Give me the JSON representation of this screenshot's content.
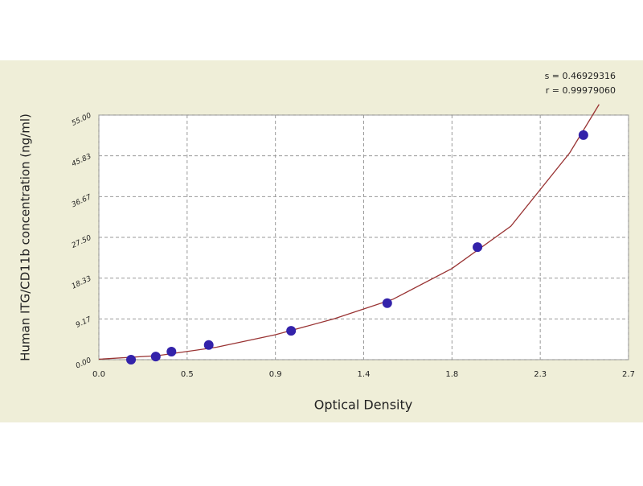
{
  "chart_data": {
    "type": "scatter",
    "annotations": [
      "s = 0.46929316",
      "r = 0.99979060"
    ],
    "xlabel": "Optical Density",
    "ylabel": "Human ITG/CD11b concentration (ng/ml)",
    "xlim": [
      0,
      2.7
    ],
    "ylim": [
      0,
      55
    ],
    "xticks": [
      {
        "value": 0,
        "label": "0.0"
      },
      {
        "value": 0.45,
        "label": "0.5"
      },
      0.9,
      {
        "value": 1.35,
        "label": "1.4"
      },
      1.8,
      {
        "value": 2.25,
        "label": "2.3"
      },
      2.7
    ],
    "yticks": [
      {
        "value": 0,
        "label": "0.00"
      },
      9.17,
      18.33,
      {
        "value": 27.5,
        "label": "27.50"
      },
      36.67,
      45.83,
      {
        "value": 55,
        "label": "55.00"
      }
    ],
    "grid": true,
    "points": {
      "color": "#3322aa",
      "x": [
        0.164,
        0.29,
        0.37,
        0.56,
        0.98,
        1.47,
        1.93,
        2.47
      ],
      "y": [
        0.0,
        0.7,
        1.8,
        3.3,
        6.5,
        12.7,
        25.3,
        50.5
      ]
    },
    "curve": {
      "color": "#993333",
      "x": [
        0,
        0.3,
        0.6,
        0.9,
        1.2,
        1.5,
        1.8,
        2.1,
        2.4,
        2.55
      ],
      "y": [
        0.1,
        0.9,
        2.8,
        5.6,
        9.2,
        13.6,
        20.5,
        30.0,
        46.5,
        57.4
      ]
    }
  }
}
